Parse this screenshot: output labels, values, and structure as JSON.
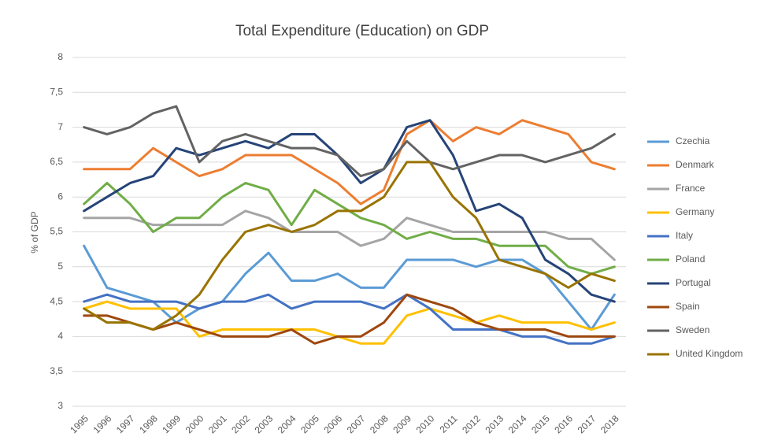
{
  "chart_data": {
    "type": "line",
    "title": "Total Expenditure (Education) on GDP",
    "y_label": "% of GDP",
    "categories": [
      "1995",
      "1996",
      "1997",
      "1998",
      "1999",
      "2000",
      "2001",
      "2002",
      "2003",
      "2004",
      "2005",
      "2006",
      "2007",
      "2008",
      "2009",
      "2010",
      "2011",
      "2012",
      "2013",
      "2014",
      "2015",
      "2016",
      "2017",
      "2018"
    ],
    "ylim": [
      3,
      8
    ],
    "yticks": [
      3,
      {
        "value": 3.5,
        "label": "3,5"
      },
      4,
      {
        "value": 4.5,
        "label": "4,5"
      },
      5,
      {
        "value": 5.5,
        "label": "5,5"
      },
      6,
      {
        "value": 6.5,
        "label": "6,5"
      },
      7,
      {
        "value": 7.5,
        "label": "7,5"
      },
      8
    ],
    "grid": true,
    "legend": "right",
    "series": [
      {
        "name": "Czechia",
        "color": "#5b9bd5",
        "values": [
          5.3,
          4.7,
          4.6,
          4.5,
          4.2,
          4.4,
          4.5,
          4.9,
          5.2,
          4.8,
          4.8,
          4.9,
          4.7,
          4.7,
          5.1,
          5.1,
          5.1,
          5.0,
          5.1,
          5.1,
          4.9,
          4.5,
          4.1,
          4.6
        ]
      },
      {
        "name": "Denmark",
        "color": "#ed7d31",
        "values": [
          6.4,
          6.4,
          6.4,
          6.7,
          6.5,
          6.3,
          6.4,
          6.6,
          6.6,
          6.6,
          6.4,
          6.2,
          5.9,
          6.1,
          6.9,
          7.1,
          6.8,
          7.0,
          6.9,
          7.1,
          7.0,
          6.9,
          6.5,
          6.4
        ]
      },
      {
        "name": "France",
        "color": "#a5a5a5",
        "values": [
          5.7,
          5.7,
          5.7,
          5.6,
          5.6,
          5.6,
          5.6,
          5.8,
          5.7,
          5.5,
          5.5,
          5.5,
          5.3,
          5.4,
          5.7,
          5.6,
          5.5,
          5.5,
          5.5,
          5.5,
          5.5,
          5.4,
          5.4,
          5.1
        ]
      },
      {
        "name": "Germany",
        "color": "#ffc000",
        "values": [
          4.4,
          4.5,
          4.4,
          4.4,
          4.4,
          4.0,
          4.1,
          4.1,
          4.1,
          4.1,
          4.1,
          4.0,
          3.9,
          3.9,
          4.3,
          4.4,
          4.3,
          4.2,
          4.3,
          4.2,
          4.2,
          4.2,
          4.1,
          4.2
        ]
      },
      {
        "name": "Italy",
        "color": "#4472c4",
        "values": [
          4.5,
          4.6,
          4.5,
          4.5,
          4.5,
          4.4,
          4.5,
          4.5,
          4.6,
          4.4,
          4.5,
          4.5,
          4.5,
          4.4,
          4.6,
          4.4,
          4.1,
          4.1,
          4.1,
          4.0,
          4.0,
          3.9,
          3.9,
          4.0
        ]
      },
      {
        "name": "Poland",
        "color": "#70ad47",
        "values": [
          5.9,
          6.2,
          5.9,
          5.5,
          5.7,
          5.7,
          6.0,
          6.2,
          6.1,
          5.6,
          6.1,
          5.9,
          5.7,
          5.6,
          5.4,
          5.5,
          5.4,
          5.4,
          5.3,
          5.3,
          5.3,
          5.0,
          4.9,
          5.0
        ]
      },
      {
        "name": "Portugal",
        "color": "#264478",
        "values": [
          5.8,
          6.0,
          6.2,
          6.3,
          6.7,
          6.6,
          6.7,
          6.8,
          6.7,
          6.9,
          6.9,
          6.6,
          6.2,
          6.4,
          7.0,
          7.1,
          6.6,
          5.8,
          5.9,
          5.7,
          5.1,
          4.9,
          4.6,
          4.5
        ]
      },
      {
        "name": "Spain",
        "color": "#9e480e",
        "values": [
          4.3,
          4.3,
          4.2,
          4.1,
          4.2,
          4.1,
          4.0,
          4.0,
          4.0,
          4.1,
          3.9,
          4.0,
          4.0,
          4.2,
          4.6,
          4.5,
          4.4,
          4.2,
          4.1,
          4.1,
          4.1,
          4.0,
          4.0,
          4.0
        ]
      },
      {
        "name": "Sweden",
        "color": "#636363",
        "values": [
          7.0,
          6.9,
          7.0,
          7.2,
          7.3,
          6.5,
          6.8,
          6.9,
          6.8,
          6.7,
          6.7,
          6.6,
          6.3,
          6.4,
          6.8,
          6.5,
          6.4,
          6.5,
          6.6,
          6.6,
          6.5,
          6.6,
          6.7,
          6.9
        ]
      },
      {
        "name": "United Kingdom",
        "color": "#997300",
        "values": [
          4.4,
          4.2,
          4.2,
          4.1,
          4.3,
          4.6,
          5.1,
          5.5,
          5.6,
          5.5,
          5.6,
          5.8,
          5.8,
          6.0,
          6.5,
          6.5,
          6.0,
          5.7,
          5.1,
          5.0,
          4.9,
          4.7,
          4.9,
          4.8
        ]
      }
    ]
  }
}
